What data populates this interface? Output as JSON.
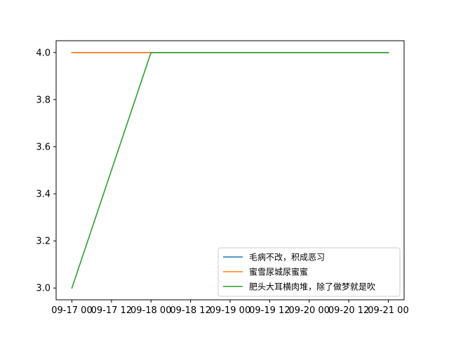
{
  "chart_data": {
    "type": "line",
    "title": "",
    "xlabel": "",
    "ylabel": "",
    "x_tick_labels": [
      "09-17 00",
      "09-17 12",
      "09-18 00",
      "09-18 12",
      "09-19 00",
      "09-19 12",
      "09-20 00",
      "09-20 12",
      "09-21 00"
    ],
    "x": [
      "09-17 00",
      "09-18 00",
      "09-19 00",
      "09-20 00",
      "09-21 00"
    ],
    "y_ticks": [
      3.0,
      3.2,
      3.4,
      3.6,
      3.8,
      4.0
    ],
    "ylim": [
      2.95,
      4.05
    ],
    "grid": false,
    "legend_position": "lower-right",
    "series": [
      {
        "name": "毛病不改，积成恶习",
        "color": "#1f77b4",
        "values": [
          4.0,
          4.0,
          4.0,
          4.0,
          4.0
        ]
      },
      {
        "name": "蜜雪尿城尿蜜蜜",
        "color": "#ff7f0e",
        "values": [
          4.0,
          4.0,
          4.0,
          4.0,
          4.0
        ]
      },
      {
        "name": "肥头大耳横肉堆，除了做梦就是吹",
        "color": "#2ca02c",
        "values": [
          3.0,
          4.0,
          4.0,
          4.0,
          4.0
        ]
      }
    ]
  }
}
